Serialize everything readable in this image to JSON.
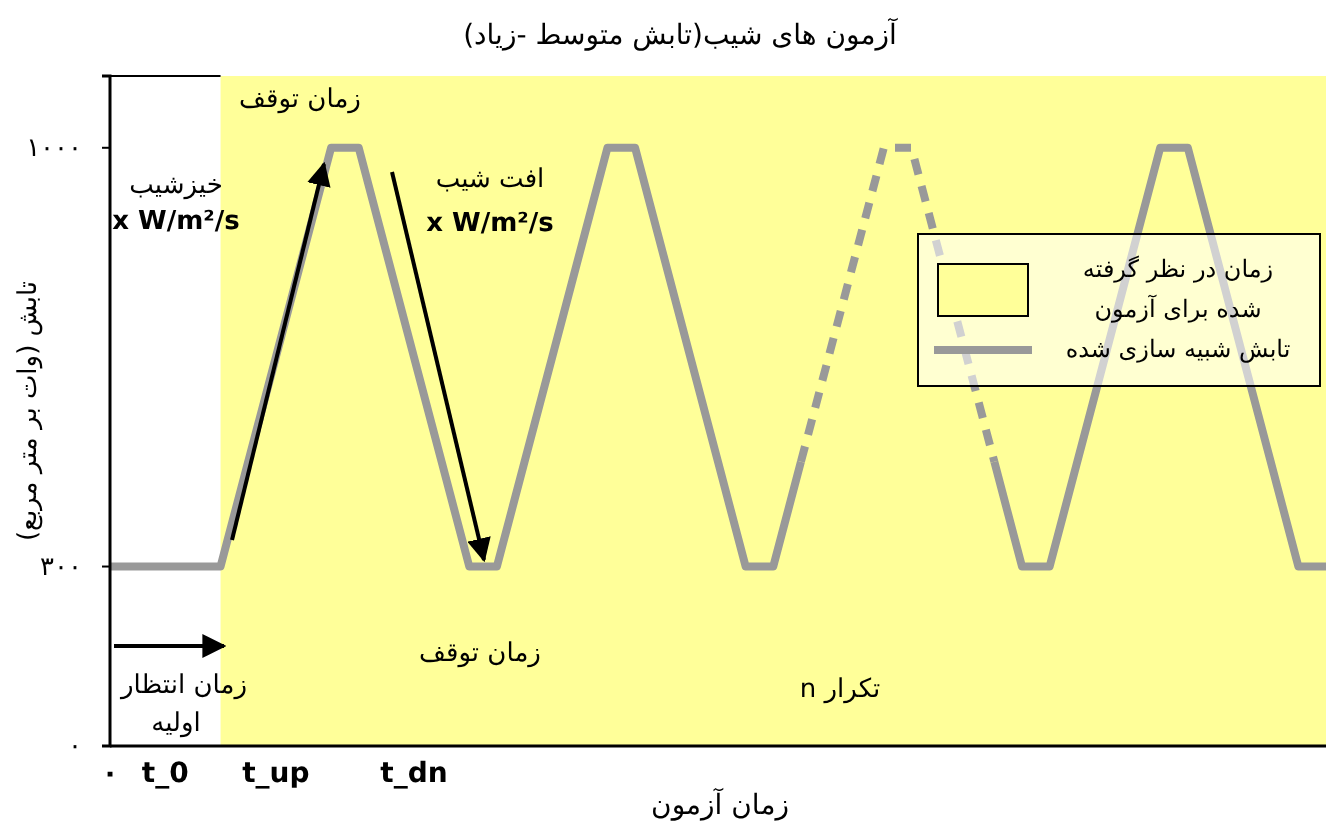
{
  "chart_data": {
    "type": "line",
    "title": "آزمون های شیب(تابش متوسط -زیاد)",
    "xlabel": "زمان آزمون",
    "ylabel": "تابش (وات بر متر مربع)",
    "categories": [
      "۰",
      null,
      "t_0",
      null,
      null,
      null,
      "t_up",
      null,
      null,
      null,
      null,
      "t_dn",
      null,
      null,
      null,
      null,
      null,
      null,
      null,
      null,
      null,
      null,
      null,
      null,
      null,
      null,
      null,
      null,
      null,
      null,
      null,
      null,
      null,
      null,
      null,
      null,
      null,
      null,
      null,
      null,
      null,
      null,
      null,
      null,
      null
    ],
    "ylim": [
      0,
      1120
    ],
    "yticks": [
      {
        "value": 0,
        "label": "۰"
      },
      {
        "value": 300,
        "label": "۳۰۰"
      },
      {
        "value": 1000,
        "label": "۱۰۰۰"
      }
    ],
    "series": [
      {
        "name": "تابش شبیه سازی شده",
        "color": "#999999",
        "line_style": "solid",
        "values": [
          300,
          300,
          300,
          300,
          300,
          475,
          650,
          825,
          1000,
          1000,
          825,
          650,
          475,
          300,
          300,
          475,
          650,
          825,
          1000,
          1000,
          825,
          650,
          475,
          300,
          300,
          475,
          null,
          null,
          null,
          null,
          null,
          null,
          475,
          300,
          300,
          475,
          650,
          825,
          1000,
          1000,
          825,
          650,
          475,
          300,
          300
        ]
      },
      {
        "color": "#999999",
        "line_style": "dashed",
        "values": [
          null,
          null,
          null,
          null,
          null,
          null,
          null,
          null,
          null,
          null,
          null,
          null,
          null,
          null,
          null,
          null,
          null,
          null,
          null,
          null,
          null,
          null,
          null,
          null,
          null,
          475,
          650,
          825,
          1000,
          1000,
          825,
          650,
          475,
          null,
          null,
          null,
          null,
          null,
          null,
          null,
          null,
          null,
          null,
          null,
          null
        ]
      }
    ],
    "annotations": [
      "زمان توقف",
      "خیزشیب",
      "x W/m²/s",
      "افت شیب",
      "x W/m²/s",
      "زمان توقف",
      "زمان انتظار",
      "اولیه",
      "n تکرار",
      "زمان در نظر گرفته شده برای آزمون"
    ],
    "legend": "right"
  }
}
